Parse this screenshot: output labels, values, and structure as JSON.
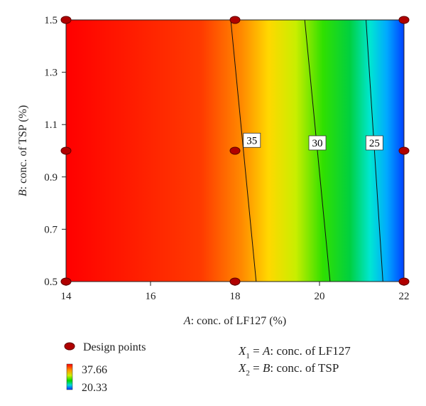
{
  "chart_data": {
    "type": "contour",
    "x_axis": {
      "var": "A",
      "label": ": conc. of LF127 (%)",
      "range": [
        14,
        22
      ],
      "ticks": [
        14,
        16,
        18,
        20,
        22
      ],
      "tick_labels": [
        "14",
        "16",
        "18",
        "20",
        "22"
      ]
    },
    "y_axis": {
      "var": "B",
      "label": ": conc. of TSP (%)",
      "range": [
        0.5,
        1.5
      ],
      "ticks": [
        0.5,
        0.7,
        0.9,
        1.1,
        1.3,
        1.5
      ],
      "tick_labels": [
        "0.5",
        "0.7",
        "0.9",
        "1.1",
        "1.3",
        "1.5"
      ]
    },
    "contours": [
      {
        "level": 35,
        "label": "35",
        "points": [
          [
            17.9,
            1.5
          ],
          [
            18.5,
            0.5
          ]
        ],
        "label_at": [
          18.4,
          1.04
        ]
      },
      {
        "level": 30,
        "label": "30",
        "points": [
          [
            19.65,
            1.5
          ],
          [
            20.25,
            0.5
          ]
        ],
        "label_at": [
          19.95,
          1.03
        ]
      },
      {
        "level": 25,
        "label": "25",
        "points": [
          [
            21.1,
            1.5
          ],
          [
            21.5,
            0.5
          ]
        ],
        "label_at": [
          21.3,
          1.03
        ]
      }
    ],
    "design_points": [
      [
        14,
        0.5
      ],
      [
        14,
        1.0
      ],
      [
        14,
        1.5
      ],
      [
        18,
        0.5
      ],
      [
        18,
        1.0
      ],
      [
        18,
        1.5
      ],
      [
        22,
        0.5
      ],
      [
        22,
        1.0
      ],
      [
        22,
        1.5
      ]
    ],
    "color_scale": {
      "max": "37.66",
      "min": "20.33",
      "colors": [
        "#ff0000",
        "#ff6a00",
        "#ffd200",
        "#9be600",
        "#00d800",
        "#00e0d0",
        "#0050ff"
      ]
    },
    "legend": {
      "design_points_label": "Design points",
      "marker_color": "#b00000"
    },
    "definitions": [
      {
        "sym": "X",
        "sub": "1",
        "var": "A",
        "text": ": conc. of LF127"
      },
      {
        "sym": "X",
        "sub": "2",
        "var": "B",
        "text": ": conc. of TSP"
      }
    ]
  }
}
